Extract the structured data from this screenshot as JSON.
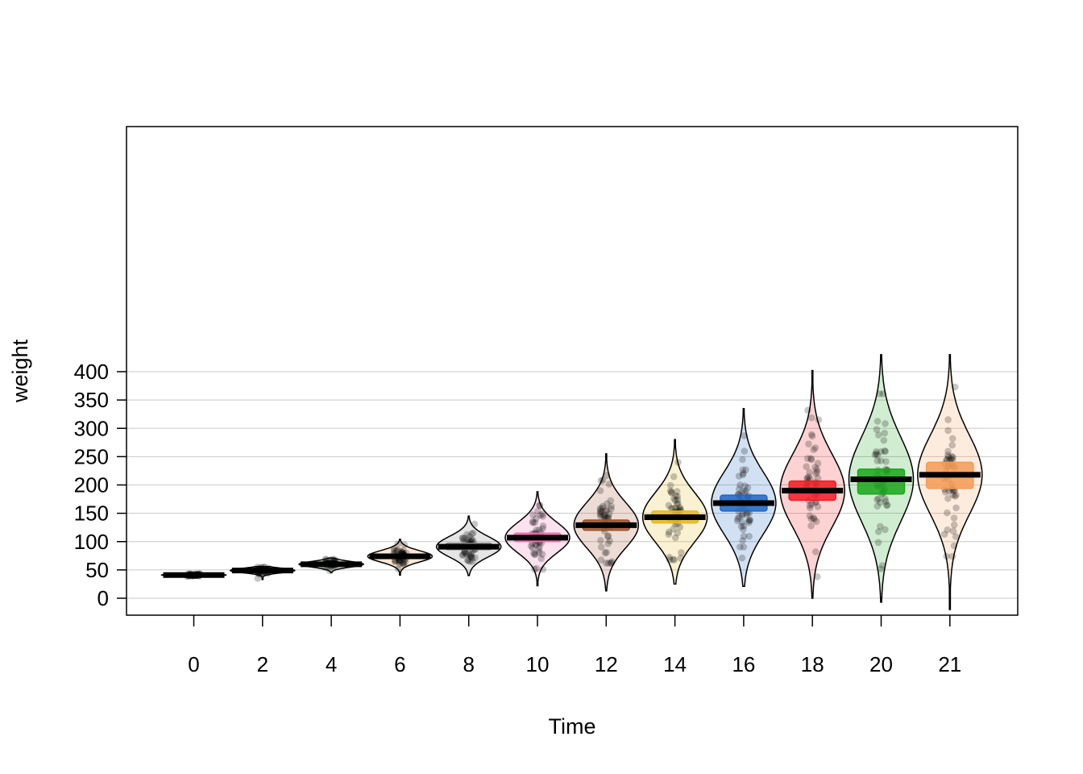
{
  "chart_data": {
    "type": "pirate",
    "xlabel": "Time",
    "ylabel": "weight",
    "ylim": [
      -15,
      416
    ],
    "y_ticks": [
      0,
      50,
      100,
      150,
      200,
      250,
      300,
      350,
      400
    ],
    "grid": true,
    "categories": [
      "0",
      "2",
      "4",
      "6",
      "8",
      "10",
      "12",
      "14",
      "16",
      "18",
      "20",
      "21"
    ],
    "colors": [
      "#222222",
      "#e3124b",
      "#2ca02c",
      "#f28e2b",
      "#7f7f7f",
      "#f06aaf",
      "#a0522d",
      "#e6b820",
      "#1f66c6",
      "#ee1c25",
      "#1aa61a",
      "#f59a55"
    ],
    "means": [
      41,
      49,
      60,
      74,
      91,
      107,
      129,
      143,
      168,
      190,
      210,
      218
    ],
    "hdi_low": [
      40,
      47,
      58,
      71,
      86,
      100,
      120,
      133,
      154,
      173,
      184,
      194
    ],
    "hdi_high": [
      42,
      51,
      63,
      78,
      97,
      115,
      138,
      154,
      182,
      207,
      228,
      240
    ],
    "min": [
      39,
      35,
      49,
      52,
      65,
      51,
      62,
      68,
      71,
      38,
      52,
      74
    ],
    "max": [
      43,
      55,
      69,
      96,
      131,
      164,
      217,
      240,
      287,
      332,
      361,
      373
    ],
    "spread": [
      1.5,
      4,
      5,
      10,
      18,
      27,
      40,
      44,
      55,
      65,
      75,
      70
    ],
    "violin_extent": [
      [
        39,
        43
      ],
      [
        33,
        56
      ],
      [
        45,
        71
      ],
      [
        41,
        104
      ],
      [
        40,
        145
      ],
      [
        22,
        188
      ],
      [
        13,
        255
      ],
      [
        25,
        280
      ],
      [
        21,
        335
      ],
      [
        0,
        402
      ],
      [
        -7,
        430
      ],
      [
        -20,
        430
      ]
    ]
  }
}
